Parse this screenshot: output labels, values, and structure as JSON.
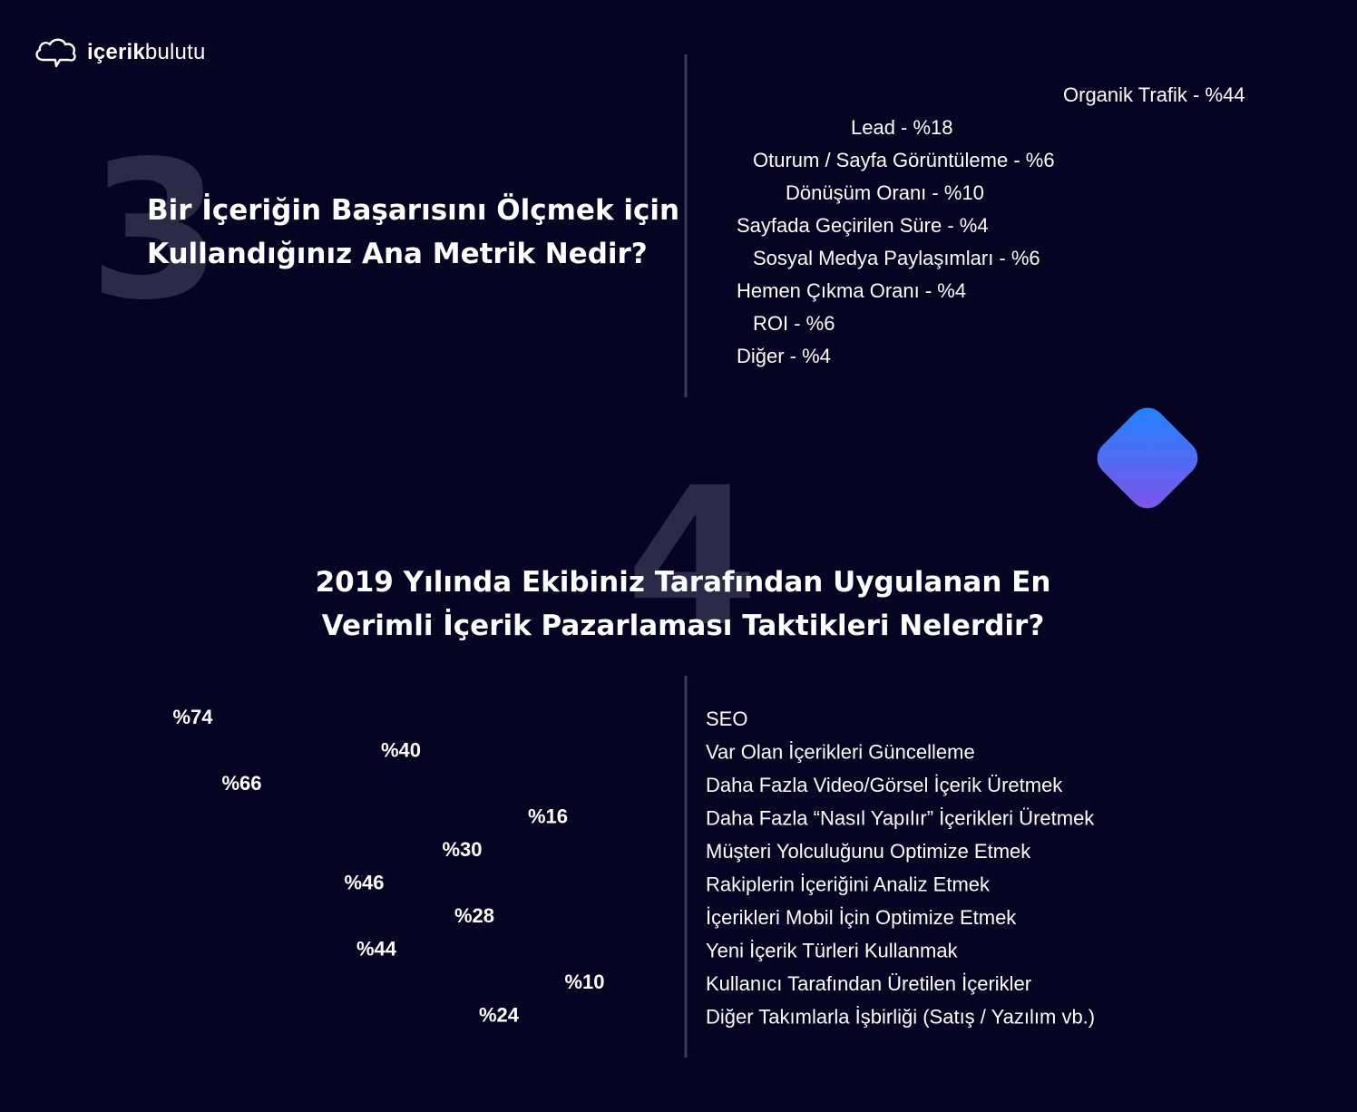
{
  "brand": {
    "logo_bold": "içerik",
    "logo_light": "bulutu",
    "logo_icon": "cloud-chat-icon"
  },
  "section3": {
    "number": "3",
    "title_line1": "Bir İçeriğin Başarısını Ölçmek için",
    "title_line2": "Kullandığınız Ana Metrik Nedir?"
  },
  "section4": {
    "number": "4",
    "title_line1": "2019 Yılında Ekibiniz Tarafından Uygulanan En",
    "title_line2": "Verimli İçerik Pazarlaması Taktikleri Nelerdir?"
  },
  "colors": {
    "background": "#050423",
    "metric_bar_start": "#1a86ff",
    "metric_bar_end": "#9a55e6",
    "tactic_bar_start": "#ff3d71",
    "tactic_bar_end": "#ff6b5c",
    "number_watermark": "#2c2b47",
    "axis": "#3d3d55"
  },
  "chart_data": [
    {
      "type": "bar",
      "orientation": "horizontal",
      "title": "Bir İçeriğin Başarısını Ölçmek için Kullandığınız Ana Metrik Nedir?",
      "categories": [
        "Organik Trafik",
        "Lead",
        "Oturum / Sayfa Görüntüleme",
        "Dönüşüm Oranı",
        "Sayfada Geçirilen Süre",
        "Sosyal Medya Paylaşımları",
        "Hemen Çıkma Oranı",
        "ROI",
        "Diğer"
      ],
      "values": [
        44,
        18,
        6,
        10,
        4,
        6,
        4,
        6,
        4
      ],
      "labels": [
        "Organik Trafik - %44",
        "Lead - %18",
        "Oturum / Sayfa Görüntüleme - %6",
        "Dönüşüm Oranı - %10",
        "Sayfada Geçirilen Süre - %4",
        "Sosyal Medya Paylaşımları - %6",
        "Hemen Çıkma Oranı - %4",
        "ROI - %6",
        "Diğer - %4"
      ],
      "unit": "%"
    },
    {
      "type": "bar",
      "orientation": "horizontal",
      "title": "2019 Yılında Ekibiniz Tarafından Uygulanan En Verimli İçerik Pazarlaması Taktikleri Nelerdir?",
      "categories": [
        "SEO",
        "Var Olan İçerikleri Güncelleme",
        "Daha Fazla Video/Görsel İçerik Üretmek",
        "Daha Fazla “Nasıl Yapılır” İçerikleri Üretmek",
        "Müşteri Yolculuğunu Optimize Etmek",
        "Rakiplerin İçeriğini Analiz Etmek",
        "İçerikleri Mobil İçin Optimize Etmek",
        "Yeni İçerik Türleri Kullanmak",
        "Kullanıcı Tarafından Üretilen İçerikler",
        "Diğer Takımlarla İşbirliği (Satış / Yazılım vb.)"
      ],
      "values": [
        74,
        40,
        66,
        16,
        30,
        46,
        28,
        44,
        10,
        24
      ],
      "value_labels": [
        "%74",
        "%40",
        "%66",
        "%16",
        "%30",
        "%46",
        "%28",
        "%44",
        "%10",
        "%24"
      ],
      "unit": "%"
    }
  ]
}
